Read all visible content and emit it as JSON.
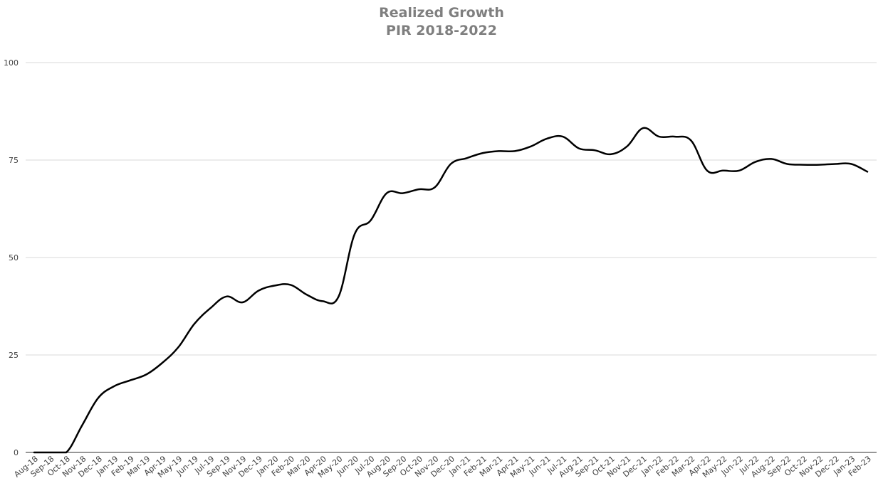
{
  "chart_data": {
    "type": "line",
    "title": "Realized Growth",
    "subtitle": "PIR 2018-2022",
    "xlabel": "",
    "ylabel": "",
    "ylim": [
      0,
      100
    ],
    "yticks": [
      0,
      25,
      50,
      75,
      100
    ],
    "grid": true,
    "legend": "none",
    "line_color": "#000000",
    "grid_color": "#d9d9d9",
    "categories": [
      "Aug-18",
      "Sep-18",
      "Oct-18",
      "Nov-18",
      "Dec-18",
      "Jan-19",
      "Feb-19",
      "Mar-19",
      "Apr-19",
      "May-19",
      "Jun-19",
      "Jul-19",
      "Sep-19",
      "Nov-19",
      "Dec-19",
      "Jan-20",
      "Feb-20",
      "Mar-20",
      "Apr-20",
      "May-20",
      "Jun-20",
      "Jul-20",
      "Aug-20",
      "Sep-20",
      "Oct-20",
      "Nov-20",
      "Dec-20",
      "Jan-21",
      "Feb-21",
      "Mar-21",
      "Apr-21",
      "May-21",
      "Jun-21",
      "Jul-21",
      "Aug-21",
      "Sep-21",
      "Oct-21",
      "Nov-21",
      "Dec-21",
      "Jan-22",
      "Feb-22",
      "Mar-22",
      "Apr-22",
      "May-22",
      "Jun-22",
      "Jul-22",
      "Aug-22",
      "Sep-22",
      "Oct-22",
      "Nov-22",
      "Dec-22",
      "Jan-23",
      "Feb-23"
    ],
    "series": [
      {
        "values": [
          0,
          0,
          0,
          7,
          14,
          17,
          18.5,
          20,
          23,
          27,
          33,
          37,
          40,
          38.5,
          41.5,
          42.8,
          43,
          40.5,
          38.8,
          40,
          56,
          59.5,
          66.5,
          66.5,
          67.5,
          68,
          74,
          75.5,
          76.8,
          77.3,
          77.3,
          78.5,
          80.5,
          81,
          78,
          77.5,
          76.5,
          78.5,
          83.2,
          81,
          81,
          80,
          72.3,
          72.3,
          72.3,
          74.5,
          75.3,
          74,
          73.8,
          73.8,
          74,
          74,
          72
        ]
      }
    ]
  }
}
